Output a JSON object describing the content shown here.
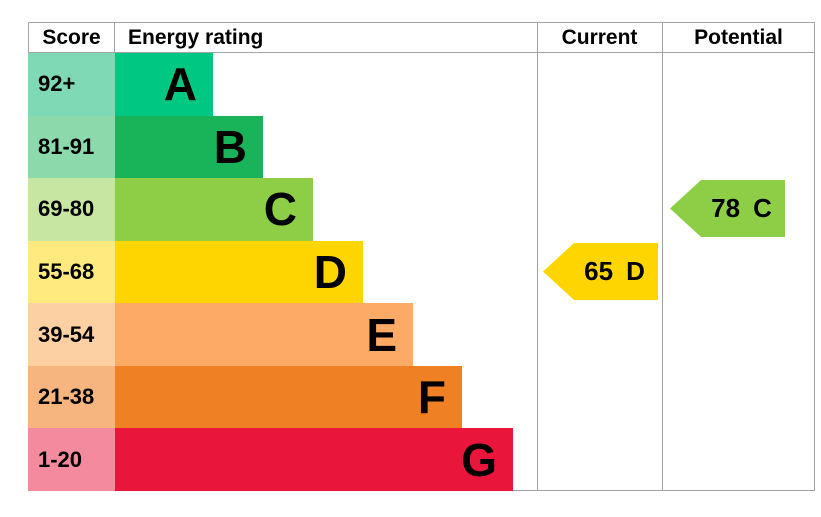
{
  "header": {
    "score": "Score",
    "energy_rating": "Energy rating",
    "current": "Current",
    "potential": "Potential"
  },
  "rows": [
    {
      "score": "92+",
      "letter": "A",
      "color": "#00c781",
      "tint": "#7fd9b5"
    },
    {
      "score": "81-91",
      "letter": "B",
      "color": "#19b459",
      "tint": "#8cd9ac"
    },
    {
      "score": "69-80",
      "letter": "C",
      "color": "#8dce46",
      "tint": "#c6e6a2"
    },
    {
      "score": "55-68",
      "letter": "D",
      "color": "#ffd500",
      "tint": "#ffea80"
    },
    {
      "score": "39-54",
      "letter": "E",
      "color": "#fcaa65",
      "tint": "#fdd0a4"
    },
    {
      "score": "21-38",
      "letter": "F",
      "color": "#ef8023",
      "tint": "#f6b47e"
    },
    {
      "score": "1-20",
      "letter": "G",
      "color": "#e9153b",
      "tint": "#f48a9d"
    }
  ],
  "current_arrow": {
    "value": "65",
    "letter": "D",
    "color": "#ffd500"
  },
  "potential_arrow": {
    "value": "78",
    "letter": "C",
    "color": "#8dce46"
  },
  "chart_data": {
    "type": "bar",
    "title": "Energy rating",
    "categories": [
      "A",
      "B",
      "C",
      "D",
      "E",
      "F",
      "G"
    ],
    "score_ranges": [
      "92+",
      "81-91",
      "69-80",
      "55-68",
      "39-54",
      "21-38",
      "1-20"
    ],
    "band_colors": [
      "#00c781",
      "#19b459",
      "#8dce46",
      "#ffd500",
      "#fcaa65",
      "#ef8023",
      "#e9153b"
    ],
    "bar_relative_widths": [
      98,
      148,
      198,
      248,
      298,
      347,
      398
    ],
    "columns": [
      "Score",
      "Energy rating",
      "Current",
      "Potential"
    ],
    "current": {
      "value": 65,
      "grade": "D"
    },
    "potential": {
      "value": 78,
      "grade": "C"
    },
    "legend_position": "none",
    "grid": false
  }
}
